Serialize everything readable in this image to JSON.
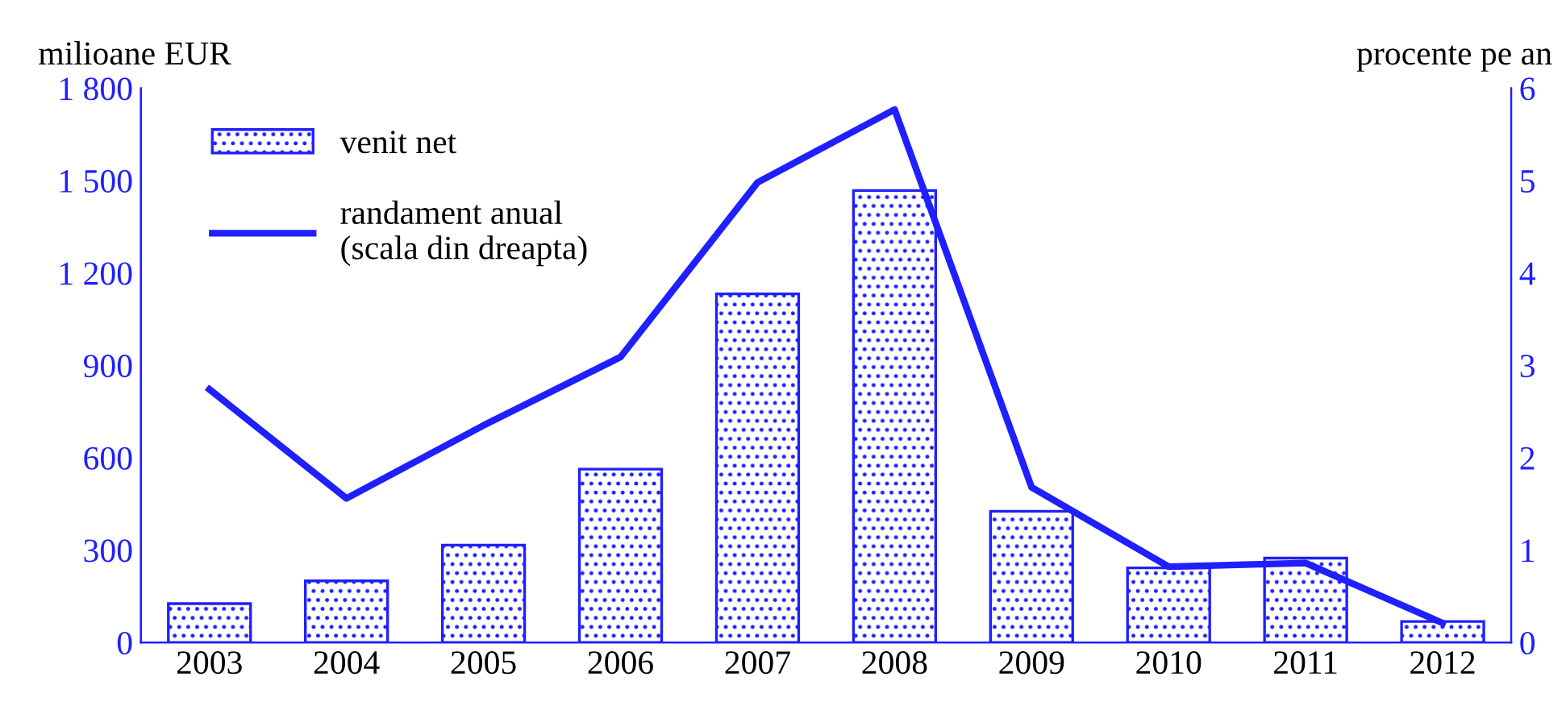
{
  "chart_data": {
    "type": "bar",
    "ylabel": "milioane EUR",
    "y2label": "procente pe an",
    "categories": [
      "2003",
      "2004",
      "2005",
      "2006",
      "2007",
      "2008",
      "2009",
      "2010",
      "2011",
      "2012"
    ],
    "series": [
      {
        "name": "venit net",
        "color": "#1f1fff",
        "values": [
          126,
          200,
          316,
          563,
          1132,
          1468,
          426,
          242,
          274,
          68
        ]
      },
      {
        "name": "randament anual\n(scala din dreapta)",
        "type": "line",
        "axis": "y2",
        "color": "#1f1fff",
        "values": [
          2.74,
          1.56,
          2.35,
          3.09,
          4.98,
          5.77,
          1.68,
          0.82,
          0.86,
          0.21
        ]
      }
    ],
    "ylim": [
      0,
      1800
    ],
    "yticks": [
      0,
      300,
      600,
      900,
      {
        "value": 1200,
        "label": "1 200"
      },
      {
        "value": 1500,
        "label": "1 500"
      },
      {
        "value": 1800,
        "label": "1 800"
      }
    ],
    "y2lim": [
      0,
      6
    ],
    "y2ticks": [
      0,
      1,
      2,
      3,
      4,
      5,
      6
    ],
    "grid": false,
    "legend": "top left",
    "marker": "none",
    "line_style": "solid"
  }
}
